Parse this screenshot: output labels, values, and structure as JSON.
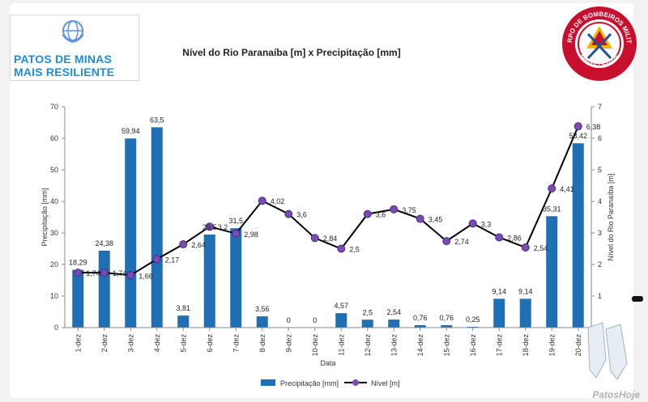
{
  "header": {
    "logo_line1": "PATOS DE MINAS",
    "logo_line2": "MAIS RESILIENTE",
    "badge_text_top": "CORPO DE BOMBEIROS MILITAR",
    "badge_text_bottom": "MINAS GERAIS"
  },
  "watermark": "PatosHoje",
  "colors": {
    "bar": "#1f6fb5",
    "line": "#000000",
    "marker": "#7a4bb3",
    "logo_blue": "#1f8dd6",
    "badge_red": "#c8102e"
  },
  "chart_data": {
    "type": "bar",
    "title": "Nível do Rio Paranaíba [m] x Precipitação [mm]",
    "xlabel": "Data",
    "ylabel": "Precipitação [mm]",
    "y2label": "Nível do Rio Paranaíba [m]",
    "ylim": [
      0,
      70
    ],
    "y2lim": [
      0,
      7
    ],
    "yticks": [
      "0",
      "10",
      "20",
      "30",
      "40",
      "50",
      "60",
      "70"
    ],
    "y2ticks": [
      "0",
      "1",
      "2",
      "3",
      "4",
      "5",
      "6",
      "7"
    ],
    "categories": [
      "1-dez",
      "2-dez",
      "3-dez",
      "4-dez",
      "5-dez",
      "6-dez",
      "7-dez",
      "8-dez",
      "9-dez",
      "10-dez",
      "11-dez",
      "12-dez",
      "13-dez",
      "14-dez",
      "15-dez",
      "16-dez",
      "17-dez",
      "18-dez",
      "19-dez",
      "20-dez"
    ],
    "series": [
      {
        "name": "Precipitação [mm]",
        "type": "bar",
        "axis": "left",
        "values": [
          18.29,
          24.38,
          59.94,
          63.5,
          3.81,
          29.5,
          31.5,
          3.56,
          0,
          0,
          4.57,
          2.5,
          2.54,
          0.76,
          0.76,
          0.25,
          9.14,
          9.14,
          35.31,
          58.42
        ],
        "labels": [
          "18,29",
          "24,38",
          "59,94",
          "63,5",
          "3,81",
          "29,5",
          "31,5",
          "3,56",
          "0",
          "0",
          "4,57",
          "2,5",
          "2,54",
          "0,76",
          "0,76",
          "0,25",
          "9,14",
          "9,14",
          "35,31",
          "58,42"
        ]
      },
      {
        "name": "Nível [m]",
        "type": "line",
        "axis": "right",
        "values": [
          1.74,
          1.74,
          1.66,
          2.17,
          2.64,
          3.2,
          2.98,
          4.02,
          3.6,
          2.84,
          2.5,
          3.6,
          3.75,
          3.45,
          2.74,
          3.3,
          2.86,
          2.54,
          4.41,
          6.38
        ],
        "labels": [
          "1,74",
          "1,74",
          "1,66",
          "2,17",
          "2,64",
          "3,2",
          "2,98",
          "4,02",
          "3,6",
          "2,84",
          "2,5",
          "3,6",
          "3,75",
          "3,45",
          "2,74",
          "3,3",
          "2,86",
          "2,54",
          "4,41",
          "6,38"
        ]
      }
    ],
    "legend": "bottom-center",
    "grid": false
  }
}
